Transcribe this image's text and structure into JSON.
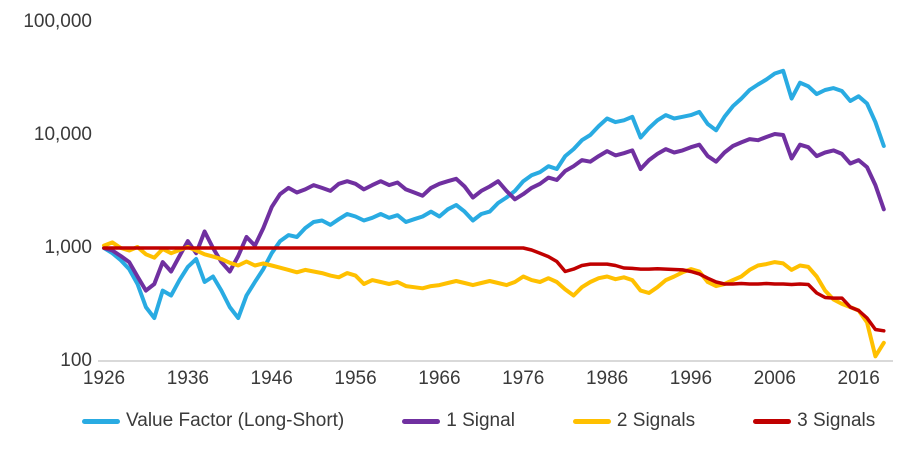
{
  "figure": {
    "background": "#ffffff",
    "axis_line_color": "#d9d9d9",
    "text_color": "#3a3a3a"
  },
  "legend": {
    "items": [
      {
        "label": "Value Factor (Long-Short)",
        "color": "#29ABE2"
      },
      {
        "label": "1 Signal",
        "color": "#7030A0"
      },
      {
        "label": "2 Signals",
        "color": "#FFC000"
      },
      {
        "label": "3 Signals",
        "color": "#C00000"
      }
    ]
  },
  "chart_data": {
    "type": "line",
    "title": "",
    "xlabel": "",
    "ylabel": "",
    "y_scale": "log",
    "y_range": [
      100,
      100000
    ],
    "x_range": [
      1926,
      2019.5
    ],
    "grid": "off",
    "legend_position": "bottom",
    "x_start_year": 1926,
    "x_step": 1,
    "x_ticks": [
      1926,
      1936,
      1946,
      1956,
      1966,
      1976,
      1986,
      1996,
      2006,
      2016
    ],
    "y_ticks": [
      {
        "label": "100,000",
        "value": 100000
      },
      {
        "label": "10,000",
        "value": 10000
      },
      {
        "label": "1,000",
        "value": 1000
      },
      {
        "label": "100",
        "value": 100
      }
    ],
    "series": [
      {
        "name": "Value Factor (Long-Short)",
        "color": "#29ABE2",
        "stroke_width": 4,
        "values": [
          1000,
          900,
          780,
          650,
          480,
          300,
          240,
          420,
          380,
          520,
          680,
          800,
          500,
          560,
          420,
          300,
          240,
          380,
          500,
          650,
          900,
          1150,
          1300,
          1250,
          1500,
          1700,
          1750,
          1600,
          1800,
          2000,
          1900,
          1750,
          1850,
          2000,
          1850,
          1950,
          1700,
          1800,
          1900,
          2100,
          1900,
          2200,
          2400,
          2100,
          1750,
          2000,
          2100,
          2500,
          2800,
          3200,
          3900,
          4400,
          4700,
          5300,
          5000,
          6500,
          7500,
          9000,
          10000,
          12000,
          14000,
          13000,
          13500,
          14500,
          9500,
          11500,
          13500,
          15000,
          14000,
          14500,
          15000,
          16000,
          12500,
          11000,
          14500,
          18000,
          21000,
          25000,
          28000,
          31000,
          35000,
          37000,
          21000,
          29000,
          27000,
          23000,
          25000,
          26000,
          24500,
          20000,
          22000,
          19000,
          13000,
          8000
        ]
      },
      {
        "name": "1 Signal",
        "color": "#7030A0",
        "stroke_width": 4,
        "values": [
          1000,
          950,
          850,
          750,
          560,
          420,
          480,
          750,
          620,
          850,
          1150,
          900,
          1400,
          1000,
          750,
          620,
          850,
          1250,
          1050,
          1500,
          2300,
          3000,
          3400,
          3100,
          3300,
          3600,
          3400,
          3200,
          3700,
          3900,
          3700,
          3300,
          3600,
          3900,
          3600,
          3800,
          3300,
          3100,
          2900,
          3400,
          3700,
          3900,
          4100,
          3500,
          2800,
          3200,
          3500,
          3900,
          3200,
          2700,
          3000,
          3400,
          3700,
          4200,
          4000,
          4800,
          5300,
          6000,
          5800,
          6500,
          7200,
          6600,
          6900,
          7300,
          5000,
          6000,
          6800,
          7500,
          7000,
          7300,
          7800,
          8200,
          6500,
          5800,
          7000,
          8000,
          8600,
          9200,
          9000,
          9600,
          10200,
          10000,
          6200,
          8200,
          7800,
          6500,
          7000,
          7300,
          6800,
          5600,
          6000,
          5200,
          3600,
          2200
        ]
      },
      {
        "name": "2 Signals",
        "color": "#FFC000",
        "stroke_width": 4,
        "values": [
          1050,
          1120,
          1000,
          950,
          1020,
          880,
          820,
          980,
          900,
          960,
          1020,
          950,
          880,
          840,
          800,
          740,
          700,
          760,
          700,
          730,
          700,
          670,
          640,
          610,
          640,
          620,
          600,
          570,
          550,
          600,
          570,
          480,
          520,
          500,
          480,
          500,
          460,
          450,
          440,
          460,
          470,
          490,
          510,
          490,
          470,
          490,
          510,
          490,
          470,
          500,
          560,
          520,
          500,
          540,
          500,
          430,
          380,
          450,
          500,
          540,
          560,
          530,
          550,
          520,
          420,
          400,
          450,
          520,
          560,
          610,
          650,
          620,
          500,
          460,
          480,
          520,
          560,
          640,
          700,
          720,
          750,
          730,
          640,
          700,
          680,
          560,
          420,
          350,
          320,
          300,
          280,
          220,
          110,
          145
        ]
      },
      {
        "name": "3 Signals",
        "color": "#C00000",
        "stroke_width": 3.5,
        "values": [
          1000,
          1000,
          1000,
          1000,
          1000,
          1000,
          1000,
          1000,
          1000,
          1000,
          1000,
          1000,
          1000,
          1000,
          1000,
          1000,
          1000,
          1000,
          1000,
          1000,
          1000,
          1000,
          1000,
          1000,
          1000,
          1000,
          1000,
          1000,
          1000,
          1000,
          1000,
          1000,
          1000,
          1000,
          1000,
          1000,
          1000,
          1000,
          1000,
          1000,
          1000,
          1000,
          1000,
          1000,
          1000,
          1000,
          1000,
          1000,
          1000,
          1000,
          1000,
          960,
          900,
          840,
          760,
          620,
          650,
          700,
          720,
          720,
          720,
          700,
          665,
          660,
          650,
          650,
          655,
          650,
          645,
          640,
          620,
          590,
          540,
          500,
          480,
          480,
          485,
          480,
          480,
          485,
          480,
          480,
          475,
          480,
          475,
          400,
          365,
          360,
          360,
          300,
          280,
          240,
          190,
          185
        ]
      }
    ]
  }
}
